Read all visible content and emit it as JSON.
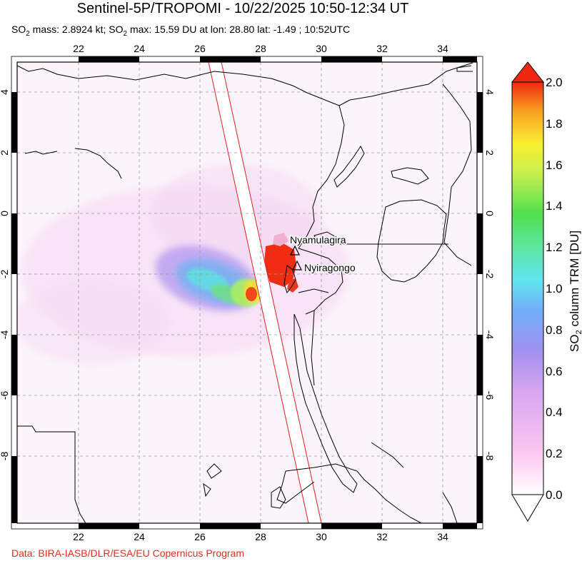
{
  "header": {
    "title": "Sentinel-5P/TROPOMI - 10/22/2025 10:50-12:34 UT",
    "stats_prefix": "SO",
    "stats_mass_label": " mass: 2.8924 kt; SO",
    "stats_rest": " max: 15.59 DU at lon: 28.80 lat: -1.49 ; 10:52UTC",
    "subscript": "2"
  },
  "map": {
    "lon_range": [
      20,
      35
    ],
    "lat_range": [
      -10,
      5
    ],
    "lon_ticks": [
      "22",
      "24",
      "26",
      "28",
      "30",
      "32",
      "34"
    ],
    "lat_ticks_left": [
      "4",
      "2",
      "0",
      "-2",
      "-4",
      "-6",
      "-8"
    ],
    "lat_ticks_right": [
      "4",
      "2",
      "0",
      "-2",
      "-4",
      "-6",
      "-8"
    ],
    "volcanoes": [
      {
        "name": "Nyamulagira",
        "lon": 29.2,
        "lat": -1.41
      },
      {
        "name": "Nyiragongo",
        "lon": 29.25,
        "lat": -1.52
      }
    ]
  },
  "colorbar": {
    "label_prefix": "SO",
    "label_sub": "2",
    "label_suffix": " column TRM [DU]",
    "ticks": [
      "2.0",
      "1.8",
      "1.6",
      "1.4",
      "1.2",
      "1.0",
      "0.8",
      "0.6",
      "0.4",
      "0.2",
      "0.0"
    ],
    "range": [
      0,
      2.0
    ],
    "colors": [
      "#ffffff",
      "#fbc8f0",
      "#e7a6f0",
      "#a090f0",
      "#5fa8f0",
      "#60e0f0",
      "#60e6a0",
      "#5ee050",
      "#c0f050",
      "#f8f030",
      "#f8a020",
      "#f03010"
    ]
  },
  "footer": {
    "credit": "Data: BIRA-IASB/DLR/ESA/EU Copernicus Program"
  }
}
